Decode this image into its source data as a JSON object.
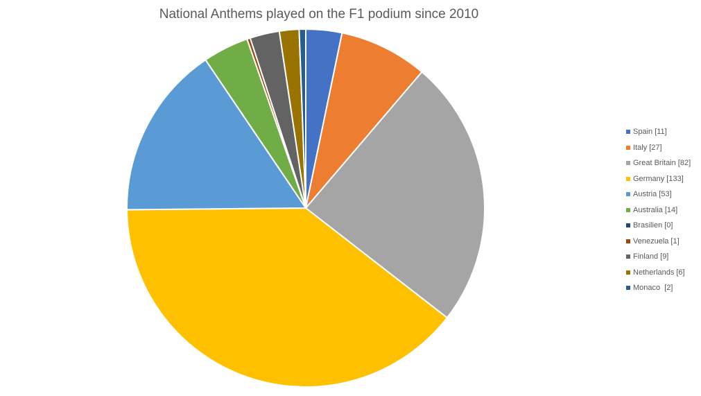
{
  "chart_data": {
    "type": "pie",
    "title": "National Anthems played on the F1 podium since 2010",
    "start_position": "12 o'clock, clockwise",
    "legend_position": "right",
    "slices": [
      {
        "label": "Spain [11]",
        "value": 11,
        "color": "#4472C4"
      },
      {
        "label": "Italy [27]",
        "value": 27,
        "color": "#ED7D31"
      },
      {
        "label": "Great Britain [82]",
        "value": 82,
        "color": "#A5A5A5"
      },
      {
        "label": "Germany [133]",
        "value": 133,
        "color": "#FFC000"
      },
      {
        "label": "Austria [53]",
        "value": 53,
        "color": "#5B9BD5"
      },
      {
        "label": "Australia [14]",
        "value": 14,
        "color": "#70AD47"
      },
      {
        "label": "Brasilien [0]",
        "value": 0,
        "color": "#264478"
      },
      {
        "label": "Venezuela [1]",
        "value": 1,
        "color": "#9E480E"
      },
      {
        "label": "Finland [9]",
        "value": 9,
        "color": "#636363"
      },
      {
        "label": "Netherlands [6]",
        "value": 6,
        "color": "#997300"
      },
      {
        "label": "Monaco  [2]",
        "value": 2,
        "color": "#255E91"
      }
    ]
  }
}
